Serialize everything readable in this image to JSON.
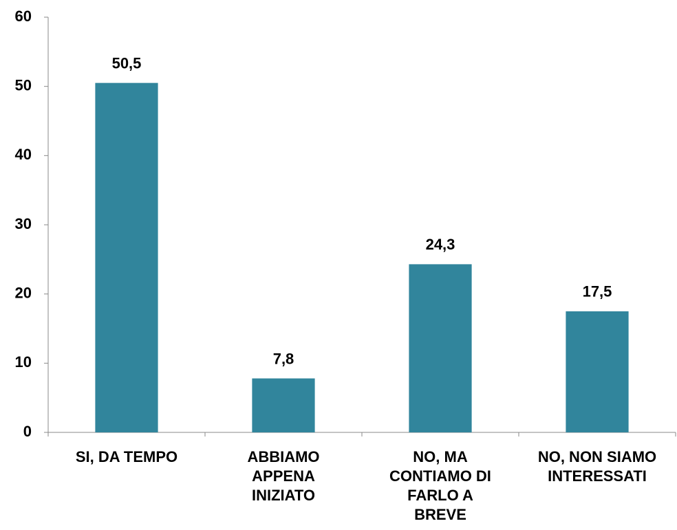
{
  "chart_data": {
    "type": "bar",
    "categories": [
      "SI, DA TEMPO",
      "ABBIAMO APPENA INIZIATO",
      "NO, MA CONTIAMO DI FARLO A BREVE",
      "NO, NON SIAMO INTERESSATI"
    ],
    "values": [
      50.5,
      7.8,
      24.3,
      17.5
    ],
    "value_labels": [
      "50,5",
      "7,8",
      "24,3",
      "17,5"
    ],
    "color": "#31859c",
    "ylim": [
      0,
      60
    ],
    "yticks": [
      0,
      10,
      20,
      30,
      40,
      50,
      60
    ],
    "grid": false
  }
}
